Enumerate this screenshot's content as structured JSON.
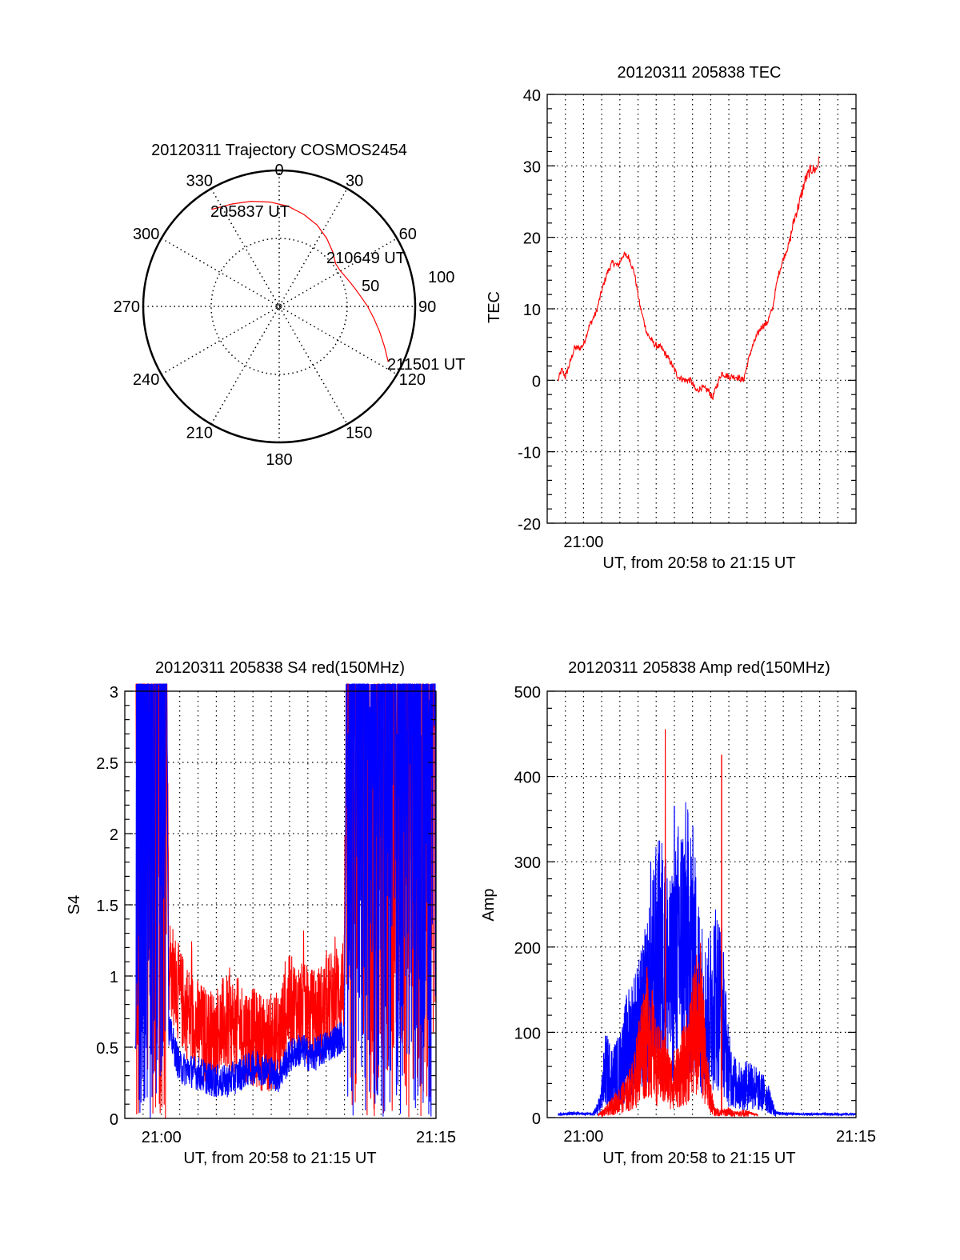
{
  "colors": {
    "red": "#ff0000",
    "blue": "#0000ff",
    "axis": "#000000",
    "grid": "#000000"
  },
  "chart_data": [
    {
      "id": "polar",
      "type": "polar",
      "title": "20120311 Trajectory COSMOS2454",
      "azimuth_labels": [
        "0",
        "30",
        "60",
        "90",
        "120",
        "150",
        "180",
        "210",
        "240",
        "270",
        "300",
        "330"
      ],
      "radial_range": [
        0,
        100
      ],
      "radial_labels": [
        "50",
        "100"
      ],
      "grid": true,
      "track": {
        "color": "red",
        "azimuth_deg": [
          325,
          335,
          345,
          355,
          5,
          15,
          25,
          35,
          45,
          53,
          60,
          68,
          76,
          84,
          90,
          97,
          104,
          111,
          117
        ],
        "radius": [
          87,
          83,
          80,
          77,
          74,
          70,
          66,
          61,
          56,
          52,
          52,
          54,
          57,
          61,
          65,
          70,
          76,
          83,
          90
        ]
      },
      "annotations": [
        {
          "text": "205837 UT",
          "azimuth_deg": 325,
          "radius": 87
        },
        {
          "text": "210649 UT",
          "azimuth_deg": 53,
          "radius": 52
        },
        {
          "text": "211501 UT",
          "azimuth_deg": 117,
          "radius": 90
        }
      ]
    },
    {
      "id": "tec",
      "type": "line",
      "title": "20120311 205838 TEC",
      "xlabel": "UT, from 20:58 to 21:15 UT",
      "ylabel": "TEC",
      "xlim_minutes": [
        0,
        17
      ],
      "ylim": [
        -20,
        40
      ],
      "yticks": [
        "-20",
        "-10",
        "0",
        "10",
        "20",
        "30",
        "40"
      ],
      "yticks_values": [
        -20,
        -10,
        0,
        10,
        20,
        30,
        40
      ],
      "xticklabels": [
        {
          "minute": 2,
          "label": "21:00"
        }
      ],
      "grid": true,
      "series": [
        {
          "name": "TEC",
          "color": "red",
          "x_minutes": [
            0.6,
            0.8,
            1.0,
            1.2,
            1.5,
            1.8,
            2.0,
            2.3,
            2.7,
            3.0,
            3.3,
            3.6,
            3.9,
            4.2,
            4.5,
            4.8,
            5.1,
            5.5,
            5.9,
            6.3,
            6.8,
            7.2,
            7.6,
            7.9,
            8.2,
            8.5,
            8.9,
            9.1,
            9.3,
            9.6,
            10.0,
            10.4,
            10.8,
            11.2,
            11.5,
            11.8,
            12.1,
            12.4,
            12.7,
            13.0,
            13.3,
            13.6,
            13.9,
            14.2,
            14.5,
            14.8,
            15.0
          ],
          "values": [
            0,
            1.5,
            0.5,
            2,
            4.5,
            4.5,
            5,
            7.5,
            9.5,
            12.5,
            15,
            16.5,
            16,
            17.6,
            17.2,
            15,
            10.5,
            6.5,
            5,
            4.5,
            2.5,
            0.5,
            0,
            0,
            -1.5,
            -1,
            -1.5,
            -2.5,
            -1,
            1,
            0.5,
            0.5,
            0,
            4,
            6,
            7.5,
            8,
            10,
            14.5,
            17,
            19,
            22.5,
            25,
            28,
            29.5,
            29.5,
            31
          ]
        }
      ]
    },
    {
      "id": "s4",
      "type": "line",
      "title": "20120311 205838 S4 red(150MHz)",
      "xlabel": "UT, from 20:58 to 21:15 UT",
      "ylabel": "S4",
      "xlim_minutes": [
        0,
        17
      ],
      "ylim": [
        0,
        3
      ],
      "yticks": [
        "0",
        "0.5",
        "1",
        "1.5",
        "2",
        "2.5",
        "3"
      ],
      "yticks_values": [
        0,
        0.5,
        1,
        1.5,
        2,
        2.5,
        3
      ],
      "xticklabels": [
        {
          "minute": 2,
          "label": "21:00"
        },
        {
          "minute": 17,
          "label": "21:15"
        }
      ],
      "grid": true,
      "series": [
        {
          "name": "red",
          "color": "red",
          "x_minutes": [
            0.6,
            2.3,
            2.4,
            3.0,
            3.6,
            4.2,
            4.8,
            5.4,
            6.0,
            6.6,
            7.2,
            7.8,
            8.4,
            9.0,
            9.6,
            10.2,
            10.8,
            11.4,
            12.0,
            12.1,
            17.0
          ],
          "values": [
            3,
            3,
            1.0,
            0.75,
            0.6,
            0.5,
            0.45,
            0.55,
            0.55,
            0.5,
            0.45,
            0.42,
            0.45,
            0.7,
            0.65,
            0.6,
            0.65,
            0.75,
            0.85,
            3,
            3
          ],
          "saturated_ranges_minutes": [
            [
              0.6,
              2.3
            ],
            [
              12.1,
              17.0
            ]
          ]
        },
        {
          "name": "blue",
          "color": "blue",
          "x_minutes": [
            0.6,
            2.3,
            2.4,
            3.0,
            3.6,
            4.2,
            4.8,
            5.4,
            6.0,
            6.6,
            7.2,
            7.8,
            8.4,
            9.0,
            9.6,
            10.2,
            10.8,
            11.4,
            12.0,
            12.1,
            17.0
          ],
          "values": [
            3,
            3,
            0.6,
            0.32,
            0.3,
            0.27,
            0.23,
            0.22,
            0.25,
            0.3,
            0.33,
            0.3,
            0.26,
            0.4,
            0.45,
            0.4,
            0.45,
            0.5,
            0.55,
            3,
            3
          ],
          "saturated_ranges_minutes": [
            [
              0.6,
              2.3
            ],
            [
              12.1,
              17.0
            ]
          ]
        }
      ]
    },
    {
      "id": "amp",
      "type": "line",
      "title": "20120311 205838 Amp red(150MHz)",
      "xlabel": "UT, from 20:58 to 21:15 UT",
      "ylabel": "Amp",
      "xlim_minutes": [
        0,
        17
      ],
      "ylim": [
        0,
        500
      ],
      "yticks": [
        "0",
        "100",
        "200",
        "300",
        "400",
        "500"
      ],
      "yticks_values": [
        0,
        100,
        200,
        300,
        400,
        500
      ],
      "xticklabels": [
        {
          "minute": 2,
          "label": "21:00"
        },
        {
          "minute": 17,
          "label": "21:15"
        }
      ],
      "grid": true,
      "series": [
        {
          "name": "red",
          "color": "red",
          "x_minutes": [
            2.8,
            3.2,
            3.6,
            4.0,
            4.4,
            4.8,
            5.2,
            5.6,
            6.0,
            6.4,
            6.8,
            7.2,
            7.6,
            8.0,
            8.4,
            8.8,
            9.2,
            9.6,
            10.0,
            10.4,
            10.8,
            11.2,
            11.6
          ],
          "values": [
            3,
            10,
            20,
            30,
            40,
            60,
            120,
            150,
            90,
            80,
            60,
            70,
            90,
            130,
            180,
            60,
            10,
            8,
            10,
            5,
            8,
            5,
            3
          ],
          "peaks": [
            {
              "minute": 6.5,
              "value": 455
            },
            {
              "minute": 9.6,
              "value": 425
            }
          ]
        },
        {
          "name": "blue",
          "color": "blue",
          "x_minutes": [
            0.6,
            1.5,
            2.5,
            2.9,
            3.2,
            3.6,
            4.0,
            4.4,
            4.8,
            5.2,
            5.6,
            6.0,
            6.4,
            6.8,
            7.2,
            7.6,
            8.0,
            8.4,
            8.8,
            9.2,
            9.6,
            10.0,
            10.4,
            10.8,
            11.2,
            11.6,
            12.0,
            12.3,
            12.6,
            14.0,
            17.0
          ],
          "values": [
            4,
            5,
            4,
            20,
            80,
            70,
            80,
            120,
            140,
            160,
            200,
            260,
            270,
            220,
            280,
            300,
            280,
            200,
            160,
            210,
            190,
            80,
            55,
            50,
            60,
            45,
            40,
            25,
            5,
            4,
            4
          ],
          "peaks": [
            {
              "minute": 5.7,
              "value": 300
            },
            {
              "minute": 7.0,
              "value": 365
            }
          ]
        }
      ]
    }
  ]
}
